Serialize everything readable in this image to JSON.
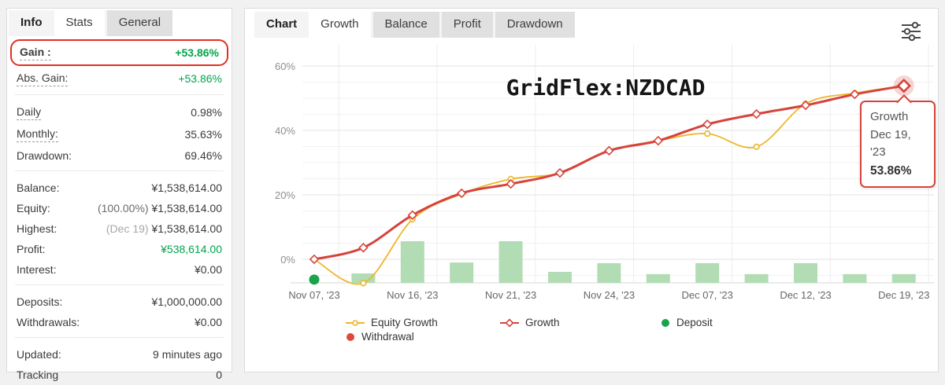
{
  "colors": {
    "growth_line": "#d6433c",
    "equity_line": "#eeb62a",
    "deposit_bar": "#b2dcb4",
    "deposit_dot": "#1aa34a",
    "withdrawal_dot": "#e0483e",
    "gain_green": "#00a44a",
    "highlight_red": "#e0301f",
    "grid_major": "#e3e3e3",
    "grid_minor": "#f1f1f1"
  },
  "left_panel": {
    "tabs": [
      {
        "label": "Info"
      },
      {
        "label": "Stats"
      },
      {
        "label": "General"
      }
    ],
    "rows": [
      {
        "label": "Gain :",
        "value": "+53.86%"
      },
      {
        "label": "Abs. Gain:",
        "value": "+53.86%"
      },
      {
        "label": "Daily",
        "value": "0.98%"
      },
      {
        "label": "Monthly:",
        "value": "35.63%"
      },
      {
        "label": "Drawdown:",
        "value": "69.46%"
      },
      {
        "label": "Balance:",
        "value": "¥1,538,614.00"
      },
      {
        "label": "Equity:",
        "value_prefix": "(100.00%)",
        "value": "¥1,538,614.00"
      },
      {
        "label": "Highest:",
        "value_prefix": "(Dec 19)",
        "value": "¥1,538,614.00"
      },
      {
        "label": "Profit:",
        "value": "¥538,614.00"
      },
      {
        "label": "Interest:",
        "value": "¥0.00"
      },
      {
        "label": "Deposits:",
        "value": "¥1,000,000.00"
      },
      {
        "label": "Withdrawals:",
        "value": "¥0.00"
      },
      {
        "label": "Updated:",
        "value": "9 minutes ago"
      },
      {
        "label": "Tracking",
        "value": "0"
      }
    ]
  },
  "right_panel": {
    "tabs": [
      {
        "label": "Chart"
      },
      {
        "label": "Growth"
      },
      {
        "label": "Balance"
      },
      {
        "label": "Profit"
      },
      {
        "label": "Drawdown"
      }
    ],
    "filter_icon": "filter-sliders-icon"
  },
  "chart_data": {
    "type": "line",
    "title": "GridFlex:NZDCAD",
    "x_tick_labels": [
      "Nov 07, '23",
      "Nov 16, '23",
      "Nov 21, '23",
      "Nov 24, '23",
      "Dec 07, '23",
      "Dec 12, '23",
      "Dec 19, '23"
    ],
    "x_tick_every": 2,
    "y_ticks": [
      0,
      20,
      40,
      60
    ],
    "y_suffix": "%",
    "ylim": [
      -7.5,
      63.5
    ],
    "grid": true,
    "legend_position": "bottom",
    "series": [
      {
        "name": "Equity Growth",
        "marker": "circle",
        "values": [
          0,
          -7.4,
          12.4,
          20.3,
          24.9,
          26.8,
          33.7,
          36.8,
          39.0,
          34.9,
          48.3,
          51.6,
          53.86
        ]
      },
      {
        "name": "Growth",
        "marker": "diamond",
        "values": [
          0,
          3.6,
          13.7,
          20.5,
          23.4,
          26.8,
          33.7,
          36.8,
          41.9,
          45.1,
          47.8,
          51.2,
          53.86
        ]
      }
    ],
    "bars": {
      "values": [
        null,
        -4.4,
        5.6,
        -1.0,
        5.6,
        -3.9,
        -1.2,
        -4.6,
        -1.2,
        -4.6,
        -1.2,
        -4.6,
        -4.6
      ],
      "baseline": -7.5
    },
    "deposit_point": {
      "x_index": 0,
      "y": -6.3
    },
    "legend": [
      {
        "label": "Equity Growth"
      },
      {
        "label": "Growth"
      },
      {
        "label": "Deposit"
      },
      {
        "label": "Withdrawal"
      }
    ],
    "tooltip": {
      "series": "Growth",
      "date": "Dec 19, '23",
      "value": "53.86%"
    }
  }
}
